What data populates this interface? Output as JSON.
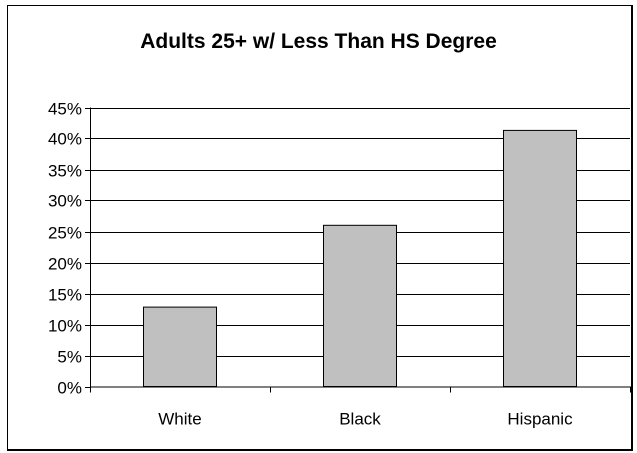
{
  "chart_data": {
    "type": "bar",
    "title": "Adults 25+ w/ Less Than HS Degree",
    "xlabel": "",
    "ylabel": "",
    "categories": [
      "White",
      "Black",
      "Hispanic"
    ],
    "values": [
      0.128,
      0.26,
      0.413
    ],
    "ylim": [
      0,
      0.45
    ],
    "ytick_step": 0.05,
    "ytick_labels": [
      "0%",
      "5%",
      "10%",
      "15%",
      "20%",
      "25%",
      "30%",
      "35%",
      "40%",
      "45%"
    ],
    "grid": true,
    "legend": "none",
    "colors": {
      "bar_fill": "#c0c0c0",
      "bar_stroke": "#000000",
      "gridline": "#000000",
      "axis": "#000000",
      "text": "#000000"
    }
  }
}
